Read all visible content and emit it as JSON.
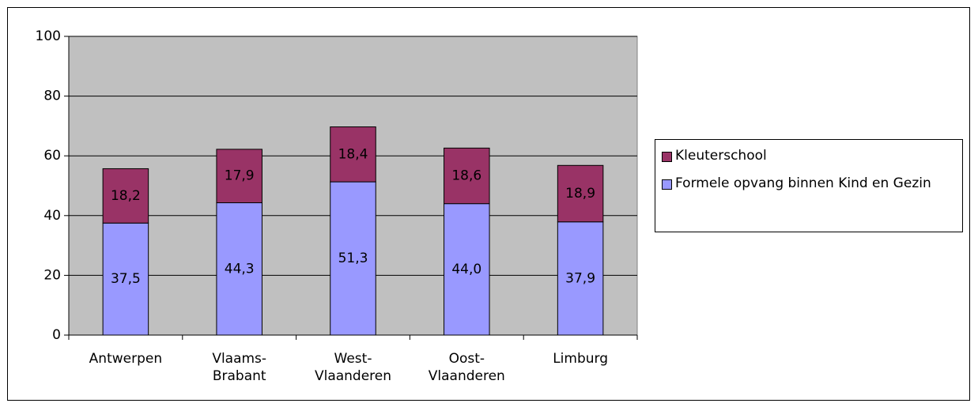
{
  "chart_data": {
    "type": "stacked_bar",
    "categories": [
      "Antwerpen",
      "Vlaams-\nBrabant",
      "West-\nVlaanderen",
      "Oost-\nVlaanderen",
      "Limburg"
    ],
    "series": [
      {
        "name": "Formele opvang binnen Kind en Gezin",
        "color": "#9999ff",
        "values": [
          37.5,
          44.3,
          51.3,
          44.0,
          37.9
        ],
        "value_labels": [
          "37,5",
          "44,3",
          "51,3",
          "44,0",
          "37,9"
        ]
      },
      {
        "name": "Kleuterschool",
        "color": "#993366",
        "values": [
          18.2,
          17.9,
          18.4,
          18.6,
          18.9
        ],
        "value_labels": [
          "18,2",
          "17,9",
          "18,4",
          "18,6",
          "18,9"
        ]
      }
    ],
    "ylim": [
      0,
      100
    ],
    "yticks": [
      0,
      20,
      40,
      60,
      80,
      100
    ],
    "grid": true,
    "legend": "right"
  }
}
